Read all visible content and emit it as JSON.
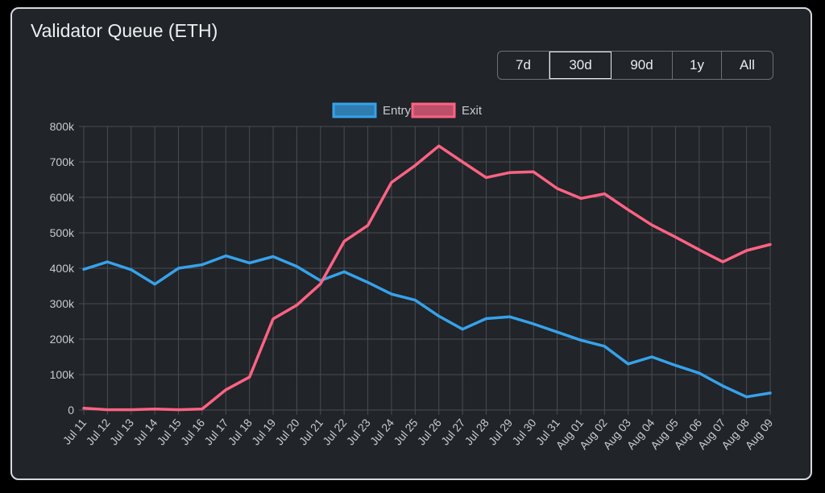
{
  "title": "Validator Queue (ETH)",
  "range_buttons": [
    {
      "label": "7d",
      "active": false
    },
    {
      "label": "30d",
      "active": true
    },
    {
      "label": "90d",
      "active": false
    },
    {
      "label": "1y",
      "active": false
    },
    {
      "label": "All",
      "active": false
    }
  ],
  "colors": {
    "entry": "#36a2eb",
    "exit": "#ff6384",
    "grid": "#4a4d52",
    "text": "#c8cbcf"
  },
  "chart_data": {
    "type": "line",
    "title": "",
    "xlabel": "",
    "ylabel": "",
    "ylim": [
      0,
      800000
    ],
    "y_ticks": [
      {
        "value": 0,
        "label": "0"
      },
      {
        "value": 100000,
        "label": "100k"
      },
      {
        "value": 200000,
        "label": "200k"
      },
      {
        "value": 300000,
        "label": "300k"
      },
      {
        "value": 400000,
        "label": "400k"
      },
      {
        "value": 500000,
        "label": "500k"
      },
      {
        "value": 600000,
        "label": "600k"
      },
      {
        "value": 700000,
        "label": "700k"
      },
      {
        "value": 800000,
        "label": "800k"
      }
    ],
    "grid": true,
    "legend_position": "top-center",
    "categories": [
      "Jul 11",
      "Jul 12",
      "Jul 13",
      "Jul 14",
      "Jul 15",
      "Jul 16",
      "Jul 17",
      "Jul 18",
      "Jul 19",
      "Jul 20",
      "Jul 21",
      "Jul 22",
      "Jul 23",
      "Jul 24",
      "Jul 25",
      "Jul 26",
      "Jul 27",
      "Jul 28",
      "Jul 29",
      "Jul 30",
      "Jul 31",
      "Aug 01",
      "Aug 02",
      "Aug 03",
      "Aug 04",
      "Aug 05",
      "Aug 06",
      "Aug 07",
      "Aug 08",
      "Aug 09"
    ],
    "series": [
      {
        "name": "Entry",
        "color": "#36a2eb",
        "values": [
          397000,
          418000,
          396000,
          355000,
          400000,
          410000,
          435000,
          415000,
          433000,
          405000,
          365000,
          390000,
          360000,
          327000,
          310000,
          265000,
          228000,
          258000,
          263000,
          243000,
          220000,
          197000,
          180000,
          130000,
          150000,
          126000,
          104000,
          68000,
          37000,
          48000
        ]
      },
      {
        "name": "Exit",
        "color": "#ff6384",
        "values": [
          5000,
          1000,
          1000,
          3000,
          1000,
          3000,
          57000,
          93000,
          257000,
          296000,
          356000,
          476000,
          521000,
          642000,
          690000,
          745000,
          700000,
          656000,
          670000,
          672000,
          625000,
          597000,
          610000,
          565000,
          522000,
          488000,
          452000,
          418000,
          450000,
          467000
        ]
      }
    ]
  }
}
